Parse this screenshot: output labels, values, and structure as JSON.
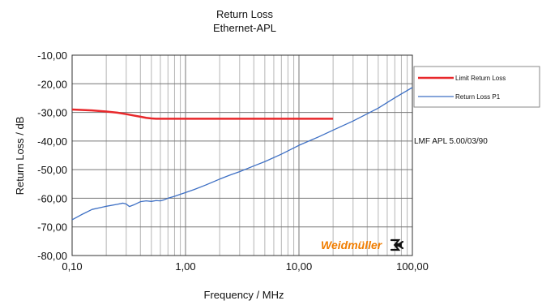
{
  "chart_data": {
    "type": "line",
    "title": "Return Loss",
    "subtitle": "Ethernet-APL",
    "xlabel": "Frequency / MHz",
    "ylabel": "Return Loss / dB",
    "xscale": "log",
    "xlim": [
      0.1,
      100
    ],
    "ylim": [
      -80,
      -10
    ],
    "x_ticks": [
      0.1,
      1,
      10,
      100
    ],
    "x_tick_labels": [
      "0,10",
      "1,00",
      "10,00",
      "100,00"
    ],
    "y_ticks": [
      -10,
      -20,
      -30,
      -40,
      -50,
      -60,
      -70,
      -80
    ],
    "y_tick_labels": [
      "-10,00",
      "-20,00",
      "-30,00",
      "-40,00",
      "-50,00",
      "-60,00",
      "-70,00",
      "-80,00"
    ],
    "grid": true,
    "legend_position": "right",
    "annotation": "LMF APL 5.00/03/90",
    "series": [
      {
        "name": "Limit Return Loss",
        "color": "#e8282b",
        "x": [
          0.1,
          0.15,
          0.2,
          0.25,
          0.3,
          0.35,
          0.4,
          0.45,
          0.5,
          0.55,
          0.6,
          1,
          2,
          5,
          10,
          20
        ],
        "y": [
          -29,
          -29.3,
          -29.7,
          -30.1,
          -30.6,
          -31.1,
          -31.5,
          -31.9,
          -32.1,
          -32.2,
          -32.2,
          -32.2,
          -32.2,
          -32.2,
          -32.2,
          -32.2
        ]
      },
      {
        "name": "Return Loss P1",
        "color": "#3d6fc4",
        "x": [
          0.1,
          0.12,
          0.15,
          0.2,
          0.25,
          0.28,
          0.3,
          0.32,
          0.35,
          0.4,
          0.45,
          0.5,
          0.55,
          0.6,
          0.65,
          0.7,
          0.8,
          0.9,
          1,
          1.2,
          1.5,
          2,
          2.5,
          3,
          4,
          5,
          7,
          10,
          15,
          20,
          30,
          50,
          70,
          100
        ],
        "y": [
          -67.5,
          -65.8,
          -63.9,
          -62.8,
          -62.1,
          -61.7,
          -62.0,
          -62.9,
          -62.3,
          -61.2,
          -60.9,
          -61.1,
          -60.8,
          -60.9,
          -60.5,
          -60.0,
          -59.3,
          -58.6,
          -58.0,
          -56.9,
          -55.4,
          -53.3,
          -51.8,
          -50.7,
          -48.7,
          -47.2,
          -44.6,
          -41.5,
          -38.5,
          -36.2,
          -33.0,
          -28.5,
          -24.9,
          -21.3
        ]
      }
    ]
  },
  "brand": {
    "logo_text": "Weidmüller",
    "accent_color": "#f07d00"
  }
}
